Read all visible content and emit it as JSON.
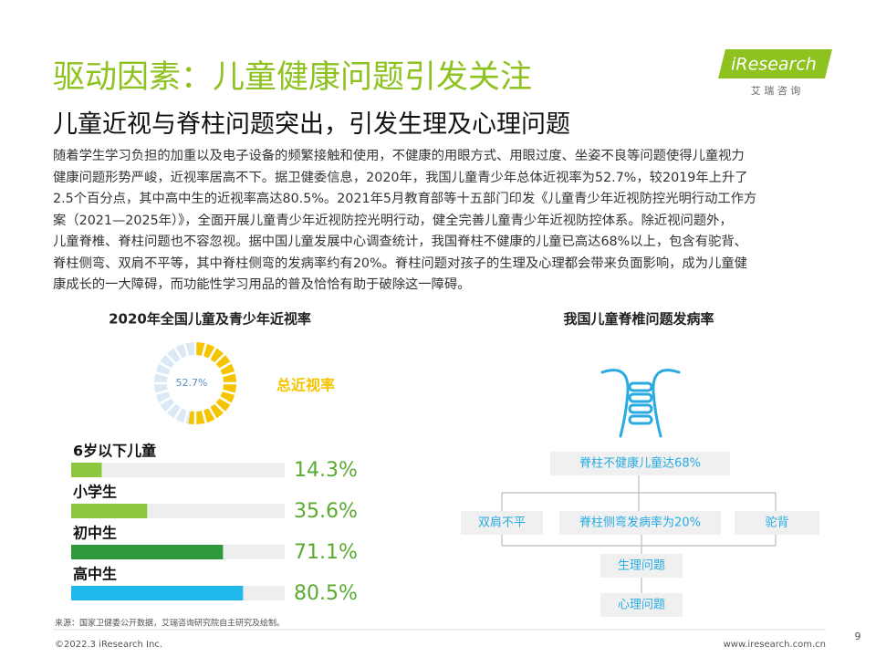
{
  "header": {
    "title": "驱动因素：儿童健康问题引发关注",
    "subtitle": "儿童近视与脊柱问题突出，引发生理及心理问题",
    "logo": "iResearch",
    "logo_cn": "艾 瑞 咨 询"
  },
  "body": {
    "lines": [
      "随着学生学习负担的加重以及电子设备的频繁接触和使用，不健康的用眼方式、用眼过度、坐姿不良等问题使得儿童视力",
      "健康问题形势严峻，近视率居高不下。据卫健委信息，2020年，我国儿童青少年总体近视率为52.7%，较2019年上升了",
      "2.5个百分点，其中高中生的近视率高达80.5%。2021年5月教育部等十五部门印发《儿童青少年近视防控光明行动工作方",
      "案（2021—2025年）》，全面开展儿童青少年近视防控光明行动，健全完善儿童青少年近视防控体系。除近视问题外，",
      "儿童脊椎、脊柱问题也不容忽视。据中国儿童发展中心调查统计，我国脊柱不健康的儿童已高达68%以上，包含有驼背、",
      "脊柱侧弯、双肩不平等，其中脊柱侧弯的发病率约有20%。脊柱问题对孩子的生理及心理都会带来负面影响，成为儿童健",
      "康成长的一大障碍，而功能性学习用品的普及恰恰有助于破除这一障碍。"
    ]
  },
  "left_chart": {
    "title": "2020年全国儿童及青少年近视率",
    "donut": {
      "value": 52.7,
      "label": "52.7%",
      "caption": "总近视率",
      "color": "#f5c400",
      "rest_color": "#dbe9f6"
    },
    "bars": {
      "type": "bar",
      "categories": [
        "6岁以下儿童",
        "小学生",
        "初中生",
        "高中生"
      ],
      "values": [
        14.3,
        35.6,
        71.1,
        80.5
      ],
      "value_labels": [
        "14.3%",
        "35.6%",
        "71.1%",
        "80.5%"
      ],
      "colors": [
        "#8dc63f",
        "#8dc63f",
        "#2e9a3c",
        "#1fb8ea"
      ],
      "xlim": [
        0,
        100
      ]
    }
  },
  "right_chart": {
    "title": "我国儿童脊椎问题发病率",
    "nodes": [
      "脊柱不健康儿童达68%",
      "双肩不平",
      "脊柱侧弯发病率为20%",
      "驼背",
      "生理问题",
      "心理问题"
    ]
  },
  "footer": {
    "source": "来源：国家卫健委公开数据，艾瑞咨询研究院自主研究及绘制。",
    "copyright": "©2022.3 iResearch Inc.",
    "url": "www.iresearch.com.cn",
    "page": 9
  }
}
